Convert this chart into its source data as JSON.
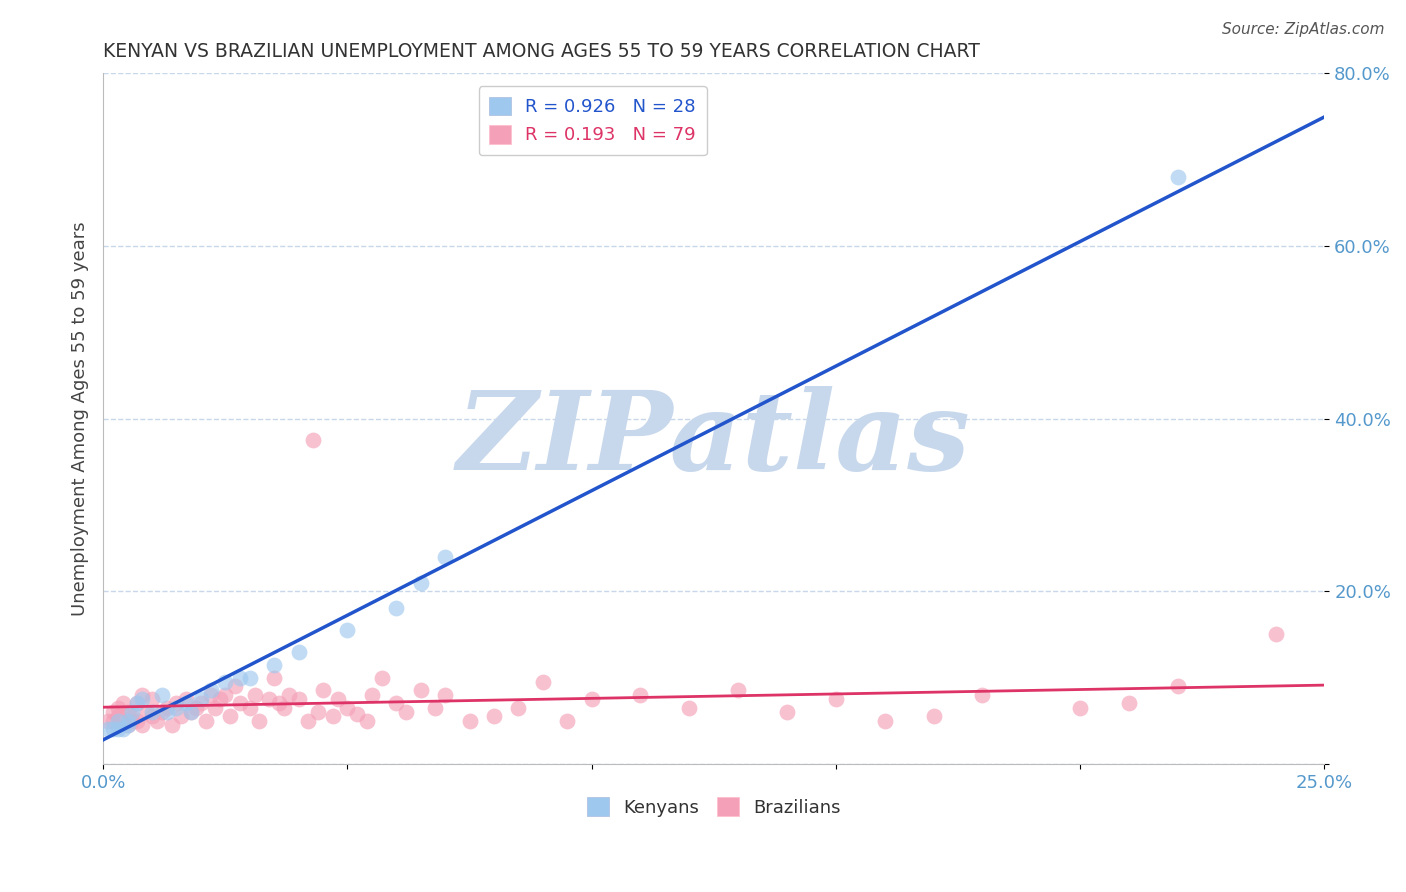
{
  "title": "KENYAN VS BRAZILIAN UNEMPLOYMENT AMONG AGES 55 TO 59 YEARS CORRELATION CHART",
  "source_text": "Source: ZipAtlas.com",
  "ylabel": "Unemployment Among Ages 55 to 59 years",
  "xlim": [
    0.0,
    0.25
  ],
  "ylim": [
    0.0,
    0.8
  ],
  "xticks": [
    0.0,
    0.05,
    0.1,
    0.15,
    0.2,
    0.25
  ],
  "yticks": [
    0.0,
    0.2,
    0.4,
    0.6,
    0.8
  ],
  "xtick_labels_show": [
    "0.0%",
    "",
    "",
    "",
    "",
    "25.0%"
  ],
  "ytick_labels": [
    "",
    "20.0%",
    "40.0%",
    "60.0%",
    "80.0%"
  ],
  "kenyan_color": "#9EC8EE",
  "brazilian_color": "#F4A0B8",
  "kenyan_line_color": "#2255CC",
  "brazilian_line_color": "#DD3366",
  "R_kenyan": 0.926,
  "N_kenyan": 28,
  "R_brazilian": 0.193,
  "N_brazilian": 79,
  "watermark": "ZIPatlas",
  "watermark_color": "#C8D8EC",
  "legend_labels": [
    "Kenyans",
    "Brazilians"
  ],
  "kenyan_x": [
    0.001,
    0.002,
    0.003,
    0.003,
    0.004,
    0.005,
    0.005,
    0.006,
    0.007,
    0.008,
    0.01,
    0.012,
    0.013,
    0.015,
    0.017,
    0.018,
    0.02,
    0.022,
    0.025,
    0.028,
    0.03,
    0.035,
    0.04,
    0.05,
    0.06,
    0.065,
    0.07,
    0.22
  ],
  "kenyan_y": [
    0.04,
    0.04,
    0.04,
    0.05,
    0.04,
    0.045,
    0.05,
    0.06,
    0.07,
    0.075,
    0.06,
    0.08,
    0.06,
    0.065,
    0.07,
    0.06,
    0.075,
    0.085,
    0.095,
    0.1,
    0.1,
    0.115,
    0.13,
    0.155,
    0.18,
    0.21,
    0.24,
    0.68
  ],
  "brazilian_x": [
    0.001,
    0.002,
    0.002,
    0.003,
    0.003,
    0.004,
    0.004,
    0.005,
    0.005,
    0.006,
    0.006,
    0.007,
    0.007,
    0.008,
    0.008,
    0.009,
    0.01,
    0.01,
    0.011,
    0.012,
    0.013,
    0.014,
    0.015,
    0.016,
    0.017,
    0.018,
    0.019,
    0.02,
    0.021,
    0.022,
    0.023,
    0.024,
    0.025,
    0.026,
    0.027,
    0.028,
    0.03,
    0.031,
    0.032,
    0.034,
    0.035,
    0.036,
    0.037,
    0.038,
    0.04,
    0.042,
    0.043,
    0.044,
    0.045,
    0.047,
    0.048,
    0.05,
    0.052,
    0.054,
    0.055,
    0.057,
    0.06,
    0.062,
    0.065,
    0.068,
    0.07,
    0.075,
    0.08,
    0.085,
    0.09,
    0.095,
    0.1,
    0.11,
    0.12,
    0.13,
    0.14,
    0.15,
    0.16,
    0.17,
    0.18,
    0.2,
    0.21,
    0.22,
    0.24
  ],
  "brazilian_y": [
    0.05,
    0.05,
    0.06,
    0.055,
    0.065,
    0.048,
    0.07,
    0.045,
    0.06,
    0.05,
    0.055,
    0.05,
    0.07,
    0.045,
    0.08,
    0.06,
    0.055,
    0.075,
    0.05,
    0.06,
    0.065,
    0.045,
    0.07,
    0.055,
    0.075,
    0.06,
    0.065,
    0.07,
    0.05,
    0.08,
    0.065,
    0.075,
    0.08,
    0.055,
    0.09,
    0.07,
    0.065,
    0.08,
    0.05,
    0.075,
    0.1,
    0.07,
    0.065,
    0.08,
    0.075,
    0.05,
    0.375,
    0.06,
    0.085,
    0.055,
    0.075,
    0.065,
    0.058,
    0.05,
    0.08,
    0.1,
    0.07,
    0.06,
    0.085,
    0.065,
    0.08,
    0.05,
    0.055,
    0.065,
    0.095,
    0.05,
    0.075,
    0.08,
    0.065,
    0.085,
    0.06,
    0.075,
    0.05,
    0.055,
    0.08,
    0.065,
    0.07,
    0.09,
    0.15
  ],
  "bg_color": "#FFFFFF",
  "grid_color": "#C8D8EA",
  "marker_size": 130
}
